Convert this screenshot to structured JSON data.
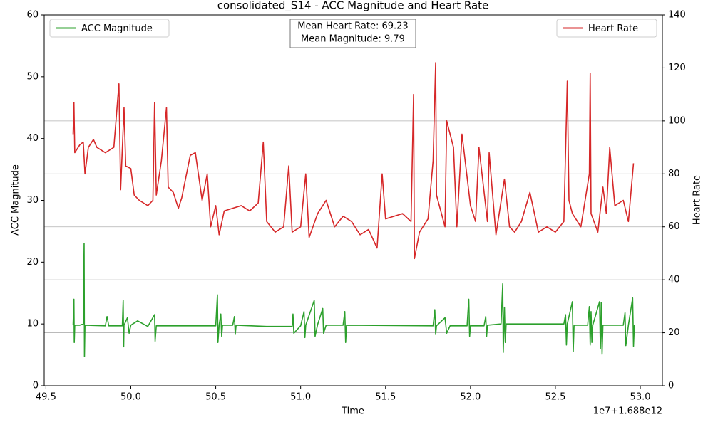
{
  "chart_data": {
    "type": "line",
    "title": "consolidated_S14 - ACC Magnitude and Heart Rate",
    "x_label": "Time",
    "x_offset_label": "1e7+1.688e12",
    "y_label": "ACC Magnitude",
    "y2_label": "Heart Rate",
    "annotation": [
      "Mean Heart Rate: 69.23",
      "Mean Magnitude: 9.79"
    ],
    "xlim": [
      49.49,
      53.13
    ],
    "xticks": [
      49.5,
      {
        "value": 50,
        "label": "50.0"
      },
      50.5,
      {
        "value": 51,
        "label": "51.0"
      },
      51.5,
      {
        "value": 52,
        "label": "52.0"
      },
      52.5,
      {
        "value": 53,
        "label": "53.0"
      }
    ],
    "ylim": [
      0,
      60
    ],
    "yticks": [
      0,
      10,
      20,
      30,
      40,
      50,
      60
    ],
    "y2lim": [
      0,
      140
    ],
    "y2ticks": [
      0,
      20,
      40,
      60,
      80,
      100,
      120,
      140
    ],
    "grid": "y2",
    "series": [
      {
        "name": "ACC Magnitude",
        "color": "#2ca02c",
        "axis": "y",
        "legend": "upper left",
        "x": [
          49.66,
          49.665,
          49.667,
          49.67,
          49.7,
          49.72,
          49.725,
          49.727,
          49.73,
          49.85,
          49.86,
          49.87,
          49.95,
          49.955,
          49.958,
          49.96,
          49.98,
          49.99,
          50.0,
          50.04,
          50.1,
          50.14,
          50.143,
          50.15,
          50.5,
          50.51,
          50.513,
          50.52,
          50.53,
          50.535,
          50.54,
          50.6,
          50.61,
          50.615,
          50.62,
          50.8,
          50.95,
          50.955,
          50.96,
          51.0,
          51.02,
          51.025,
          51.03,
          51.08,
          51.085,
          51.1,
          51.13,
          51.135,
          51.15,
          51.25,
          51.26,
          51.265,
          51.27,
          51.78,
          51.79,
          51.795,
          51.8,
          51.85,
          51.86,
          51.88,
          51.98,
          51.99,
          51.995,
          52.0,
          52.08,
          52.09,
          52.095,
          52.1,
          52.18,
          52.19,
          52.193,
          52.2,
          52.205,
          52.21,
          52.3,
          52.5,
          52.55,
          52.56,
          52.565,
          52.57,
          52.6,
          52.605,
          52.61,
          52.69,
          52.7,
          52.705,
          52.71,
          52.715,
          52.72,
          52.76,
          52.765,
          52.77,
          52.775,
          52.78,
          52.9,
          52.91,
          52.915,
          52.93,
          52.955,
          52.96,
          52.965
        ],
        "values": [
          9.8,
          14,
          7,
          9.8,
          9.8,
          10,
          23,
          4.7,
          9.8,
          9.7,
          11.2,
          9.7,
          9.7,
          13.8,
          6.3,
          9.8,
          11,
          8.5,
          9.8,
          10.5,
          9.6,
          11.5,
          7.2,
          9.7,
          9.7,
          14.7,
          7,
          9.8,
          11.6,
          8,
          9.8,
          9.8,
          11.2,
          8.3,
          9.8,
          9.6,
          9.6,
          11.6,
          8.5,
          9.7,
          12,
          7.8,
          9.8,
          13.8,
          8,
          9.9,
          12.5,
          8.5,
          9.8,
          9.8,
          12,
          7,
          9.8,
          9.7,
          12.3,
          8.3,
          9.7,
          11,
          8.5,
          9.7,
          9.7,
          14,
          8,
          9.7,
          9.7,
          11.2,
          8,
          9.8,
          10,
          16.5,
          5.4,
          12.7,
          7,
          10,
          10,
          10,
          10,
          11.5,
          6.6,
          10,
          13.6,
          5.5,
          9.8,
          9.8,
          12.8,
          6.6,
          12,
          7,
          9.8,
          13.6,
          6,
          13.5,
          5.1,
          9.8,
          9.8,
          11.8,
          6.5,
          9.8,
          14.2,
          6.4,
          9.8
        ]
      },
      {
        "name": "Heart Rate",
        "color": "#d62728",
        "axis": "y2",
        "legend": "upper right",
        "x": [
          49.66,
          49.665,
          49.67,
          49.7,
          49.72,
          49.73,
          49.75,
          49.78,
          49.8,
          49.85,
          49.9,
          49.93,
          49.94,
          49.96,
          49.97,
          50.0,
          50.02,
          50.05,
          50.1,
          50.13,
          50.14,
          50.15,
          50.18,
          50.21,
          50.22,
          50.25,
          50.28,
          50.3,
          50.35,
          50.38,
          50.42,
          50.45,
          50.47,
          50.5,
          50.52,
          50.55,
          50.6,
          50.65,
          50.7,
          50.75,
          50.78,
          50.8,
          50.85,
          50.9,
          50.93,
          50.95,
          51.0,
          51.03,
          51.05,
          51.1,
          51.15,
          51.2,
          51.25,
          51.3,
          51.35,
          51.4,
          51.45,
          51.48,
          51.5,
          51.55,
          51.6,
          51.65,
          51.665,
          51.67,
          51.7,
          51.75,
          51.78,
          51.795,
          51.8,
          51.85,
          51.86,
          51.9,
          51.92,
          51.95,
          52.0,
          52.03,
          52.05,
          52.1,
          52.11,
          52.15,
          52.2,
          52.23,
          52.26,
          52.3,
          52.35,
          52.4,
          52.45,
          52.5,
          52.55,
          52.57,
          52.58,
          52.6,
          52.65,
          52.7,
          52.705,
          52.71,
          52.75,
          52.78,
          52.8,
          52.82,
          52.85,
          52.9,
          52.93,
          52.96
        ],
        "values": [
          95,
          107,
          88,
          91,
          92,
          80,
          90,
          93,
          90,
          88,
          90,
          114,
          74,
          105,
          83,
          82,
          72,
          70,
          68,
          70,
          107,
          72,
          85,
          105,
          75,
          73,
          67,
          71,
          87,
          88,
          70,
          80,
          60,
          68,
          57,
          66,
          67,
          68,
          66,
          69,
          92,
          62,
          58,
          60,
          83,
          58,
          60,
          80,
          56,
          65,
          70,
          60,
          64,
          62,
          57,
          59,
          52,
          80,
          63,
          64,
          65,
          62,
          110,
          48,
          58,
          63,
          85,
          122,
          72,
          60,
          100,
          90,
          60,
          95,
          68,
          62,
          90,
          62,
          88,
          57,
          78,
          60,
          58,
          62,
          73,
          58,
          60,
          58,
          62,
          115,
          70,
          65,
          60,
          80,
          118,
          65,
          58,
          75,
          65,
          90,
          68,
          70,
          62,
          84
        ]
      }
    ]
  }
}
